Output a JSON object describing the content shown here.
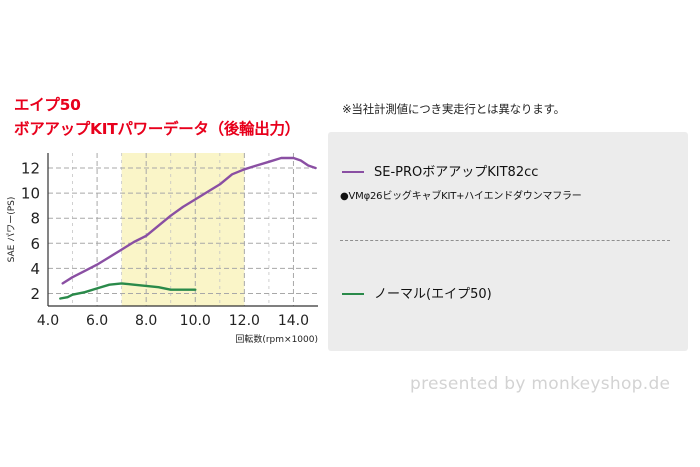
{
  "title_line_1": "エイプ50",
  "title_line_2": "ボアアップKITパワーデータ（後輪出力）",
  "note": "※当社計測値につき実走行とは異なります。",
  "legend": {
    "kit_label": "SE-PROボアアップKIT82cc",
    "kit_sub": "●VMφ26ビッグキャブKIT+ハイエンドダウンマフラー",
    "normal_label": "ノーマル(エイプ50)"
  },
  "footer": {
    "credit": "presented by monkeyshop.de"
  },
  "colors": {
    "title": "#e8001c",
    "kit": "#8a4fa3",
    "normal": "#2a8a4a",
    "plot_bg": "#faf5c8"
  },
  "chart_data": {
    "type": "line",
    "xlabel": "回転数(rpm×1000)",
    "ylabel": "SAE パワー(PS)",
    "x_ticks": [
      "4.0",
      "6.0",
      "8.0",
      "10.0",
      "12.0",
      "14.0"
    ],
    "y_ticks": [
      "2",
      "4",
      "6",
      "8",
      "10",
      "12"
    ],
    "xlim": [
      4.0,
      15.0
    ],
    "ylim": [
      1.0,
      13.2
    ],
    "grid": true,
    "series": [
      {
        "name": "SE-PROボアアップKIT82cc",
        "color": "#8a4fa3",
        "x": [
          4.6,
          5.0,
          5.5,
          6.0,
          6.5,
          7.0,
          7.5,
          8.0,
          8.5,
          9.0,
          9.5,
          10.0,
          10.5,
          11.0,
          11.5,
          12.0,
          12.5,
          13.0,
          13.5,
          14.0,
          14.3,
          14.6,
          14.9
        ],
        "y": [
          2.8,
          3.3,
          3.8,
          4.3,
          4.9,
          5.5,
          6.1,
          6.6,
          7.4,
          8.2,
          8.9,
          9.5,
          10.1,
          10.7,
          11.5,
          11.9,
          12.2,
          12.5,
          12.8,
          12.8,
          12.6,
          12.2,
          12.0
        ]
      },
      {
        "name": "ノーマル(エイプ50)",
        "color": "#2a8a4a",
        "x": [
          4.5,
          4.8,
          5.0,
          5.5,
          6.0,
          6.5,
          7.0,
          7.5,
          8.0,
          8.5,
          9.0,
          9.5,
          10.0
        ],
        "y": [
          1.6,
          1.7,
          1.9,
          2.1,
          2.4,
          2.7,
          2.8,
          2.7,
          2.6,
          2.5,
          2.3,
          2.3,
          2.3
        ]
      }
    ]
  }
}
